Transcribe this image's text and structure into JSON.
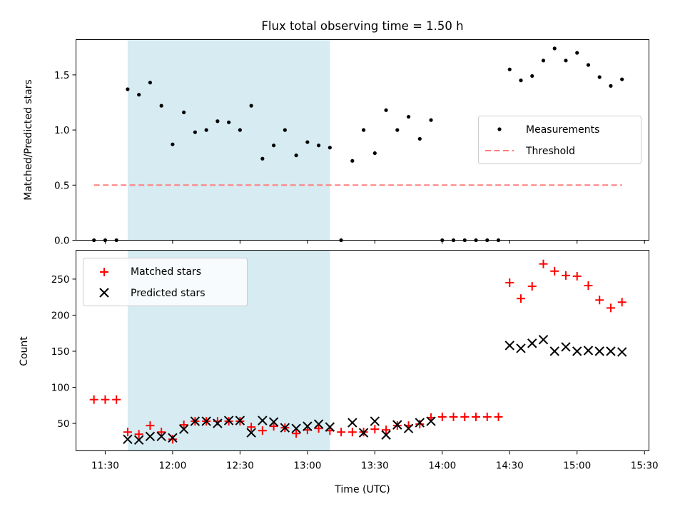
{
  "title": "Flux total observing time = 1.50 h",
  "colors": {
    "shade": "#add8e6",
    "measure": "#000000",
    "threshold": "#ff7f7f",
    "matched": "#ff0000",
    "predicted": "#000000"
  },
  "chart_data": [
    {
      "type": "scatter",
      "panel": "top",
      "ylabel": "Matched/Predicted stars",
      "xlim": [
        "11:17",
        "15:32"
      ],
      "ylim": [
        0,
        1.82
      ],
      "yticks": [
        0.0,
        0.5,
        1.0,
        1.5
      ],
      "ytick_labels": [
        "0.0",
        "0.5",
        "1.0",
        "1.5"
      ],
      "shaded_span": [
        "11:40",
        "13:10"
      ],
      "legend_position": "center-right",
      "legend": [
        "Measurements",
        "Threshold"
      ],
      "threshold": {
        "name": "Threshold",
        "y": 0.5,
        "x_range": [
          "11:25",
          "15:20"
        ]
      },
      "measurements": {
        "name": "Measurements",
        "points": [
          [
            "11:25",
            0.0
          ],
          [
            "11:30",
            0.0
          ],
          [
            "11:35",
            0.0
          ],
          [
            "11:40",
            1.37
          ],
          [
            "11:45",
            1.32
          ],
          [
            "11:50",
            1.43
          ],
          [
            "11:55",
            1.22
          ],
          [
            "12:00",
            0.87
          ],
          [
            "12:05",
            1.16
          ],
          [
            "12:10",
            0.98
          ],
          [
            "12:15",
            1.0
          ],
          [
            "12:20",
            1.08
          ],
          [
            "12:25",
            1.07
          ],
          [
            "12:30",
            1.0
          ],
          [
            "12:35",
            1.22
          ],
          [
            "12:40",
            0.74
          ],
          [
            "12:45",
            0.86
          ],
          [
            "12:50",
            1.0
          ],
          [
            "12:55",
            0.77
          ],
          [
            "13:00",
            0.89
          ],
          [
            "13:05",
            0.86
          ],
          [
            "13:10",
            0.84
          ],
          [
            "13:15",
            0.0
          ],
          [
            "13:20",
            0.72
          ],
          [
            "13:25",
            1.0
          ],
          [
            "13:30",
            0.79
          ],
          [
            "13:35",
            1.18
          ],
          [
            "13:40",
            1.0
          ],
          [
            "13:45",
            1.12
          ],
          [
            "13:50",
            0.92
          ],
          [
            "13:55",
            1.09
          ],
          [
            "14:00",
            0.0
          ],
          [
            "14:05",
            0.0
          ],
          [
            "14:10",
            0.0
          ],
          [
            "14:15",
            0.0
          ],
          [
            "14:20",
            0.0
          ],
          [
            "14:25",
            0.0
          ],
          [
            "14:30",
            1.55
          ],
          [
            "14:35",
            1.45
          ],
          [
            "14:40",
            1.49
          ],
          [
            "14:45",
            1.63
          ],
          [
            "14:50",
            1.74
          ],
          [
            "14:55",
            1.63
          ],
          [
            "15:00",
            1.7
          ],
          [
            "15:05",
            1.59
          ],
          [
            "15:10",
            1.48
          ],
          [
            "15:15",
            1.4
          ],
          [
            "15:20",
            1.46
          ]
        ]
      }
    },
    {
      "type": "scatter",
      "panel": "bottom",
      "xlabel": "Time (UTC)",
      "ylabel": "Count",
      "xlim": [
        "11:17",
        "15:32"
      ],
      "ylim": [
        12,
        290
      ],
      "xticks": [
        "11:30",
        "12:00",
        "12:30",
        "13:00",
        "13:30",
        "14:00",
        "14:30",
        "15:00",
        "15:30"
      ],
      "yticks": [
        50,
        100,
        150,
        200,
        250
      ],
      "ytick_labels": [
        "50",
        "100",
        "150",
        "200",
        "250"
      ],
      "shaded_span": [
        "11:40",
        "13:10"
      ],
      "legend_position": "upper-left",
      "legend": [
        "Matched stars",
        "Predicted stars"
      ],
      "series": [
        {
          "name": "Matched stars",
          "marker": "+",
          "points": [
            [
              "11:25",
              83
            ],
            [
              "11:30",
              83
            ],
            [
              "11:35",
              83
            ],
            [
              "11:40",
              38
            ],
            [
              "11:45",
              35
            ],
            [
              "11:50",
              47
            ],
            [
              "11:55",
              38
            ],
            [
              "12:00",
              28
            ],
            [
              "12:05",
              48
            ],
            [
              "12:10",
              53
            ],
            [
              "12:15",
              53
            ],
            [
              "12:20",
              53
            ],
            [
              "12:25",
              53
            ],
            [
              "12:30",
              53
            ],
            [
              "12:35",
              45
            ],
            [
              "12:40",
              40
            ],
            [
              "12:45",
              46
            ],
            [
              "12:50",
              44
            ],
            [
              "12:55",
              36
            ],
            [
              "13:00",
              41
            ],
            [
              "13:05",
              43
            ],
            [
              "13:10",
              40
            ],
            [
              "13:15",
              38
            ],
            [
              "13:20",
              38
            ],
            [
              "13:25",
              38
            ],
            [
              "13:30",
              42
            ],
            [
              "13:35",
              41
            ],
            [
              "13:40",
              47
            ],
            [
              "13:45",
              47
            ],
            [
              "13:50",
              49
            ],
            [
              "13:55",
              58
            ],
            [
              "14:00",
              59
            ],
            [
              "14:05",
              59
            ],
            [
              "14:10",
              59
            ],
            [
              "14:15",
              59
            ],
            [
              "14:20",
              59
            ],
            [
              "14:25",
              59
            ],
            [
              "14:30",
              245
            ],
            [
              "14:35",
              223
            ],
            [
              "14:40",
              240
            ],
            [
              "14:45",
              271
            ],
            [
              "14:50",
              261
            ],
            [
              "14:55",
              255
            ],
            [
              "15:00",
              254
            ],
            [
              "15:05",
              241
            ],
            [
              "15:10",
              221
            ],
            [
              "15:15",
              210
            ],
            [
              "15:20",
              218
            ]
          ]
        },
        {
          "name": "Predicted stars",
          "marker": "x",
          "points": [
            [
              "11:40",
              28
            ],
            [
              "11:45",
              27
            ],
            [
              "11:50",
              32
            ],
            [
              "11:55",
              32
            ],
            [
              "12:00",
              30
            ],
            [
              "12:05",
              42
            ],
            [
              "12:10",
              53
            ],
            [
              "12:15",
              53
            ],
            [
              "12:20",
              50
            ],
            [
              "12:25",
              54
            ],
            [
              "12:30",
              54
            ],
            [
              "12:35",
              37
            ],
            [
              "12:40",
              54
            ],
            [
              "12:45",
              52
            ],
            [
              "12:50",
              44
            ],
            [
              "12:55",
              43
            ],
            [
              "13:00",
              46
            ],
            [
              "13:05",
              49
            ],
            [
              "13:10",
              45
            ],
            [
              "13:20",
              51
            ],
            [
              "13:25",
              37
            ],
            [
              "13:30",
              53
            ],
            [
              "13:35",
              34
            ],
            [
              "13:40",
              48
            ],
            [
              "13:45",
              43
            ],
            [
              "13:50",
              51
            ],
            [
              "13:55",
              53
            ],
            [
              "14:30",
              158
            ],
            [
              "14:35",
              154
            ],
            [
              "14:40",
              161
            ],
            [
              "14:45",
              166
            ],
            [
              "14:50",
              150
            ],
            [
              "14:55",
              156
            ],
            [
              "15:00",
              150
            ],
            [
              "15:05",
              151
            ],
            [
              "15:10",
              150
            ],
            [
              "15:15",
              150
            ],
            [
              "15:20",
              149
            ]
          ]
        }
      ]
    }
  ]
}
